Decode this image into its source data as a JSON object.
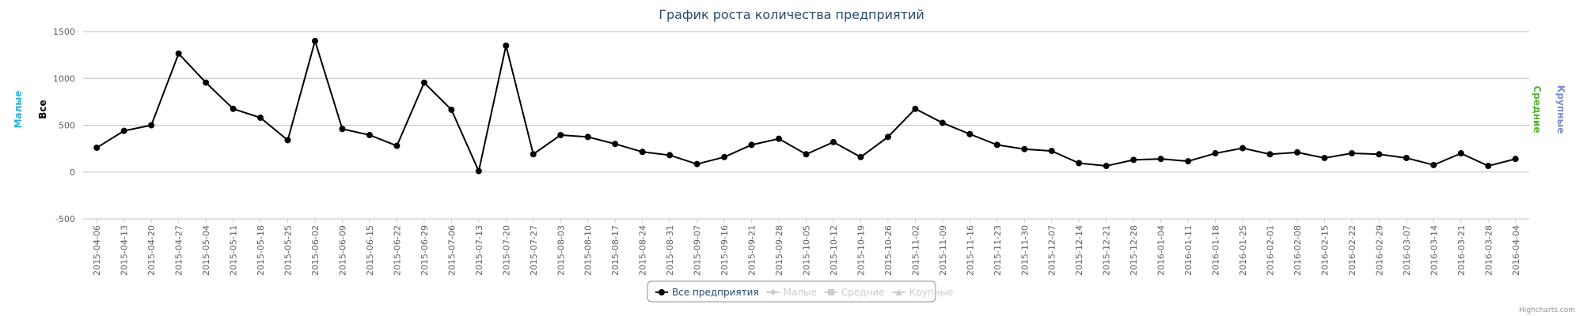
{
  "chart_data": {
    "type": "line",
    "title": "График роста количества предприятий",
    "categories": [
      "2015-04-06",
      "2015-04-13",
      "2015-04-20",
      "2015-04-27",
      "2015-05-04",
      "2015-05-11",
      "2015-05-18",
      "2015-05-25",
      "2015-06-02",
      "2015-06-09",
      "2015-06-15",
      "2015-06-22",
      "2015-06-29",
      "2015-07-06",
      "2015-07-13",
      "2015-07-20",
      "2015-07-27",
      "2015-08-03",
      "2015-08-10",
      "2015-08-17",
      "2015-08-24",
      "2015-08-31",
      "2015-09-07",
      "2015-09-16",
      "2015-09-21",
      "2015-09-28",
      "2015-10-05",
      "2015-10-12",
      "2015-10-19",
      "2015-10-26",
      "2015-11-02",
      "2015-11-09",
      "2015-11-16",
      "2015-11-23",
      "2015-11-30",
      "2015-12-07",
      "2015-12-14",
      "2015-12-21",
      "2015-12-28",
      "2016-01-04",
      "2016-01-11",
      "2016-01-18",
      "2016-01-25",
      "2016-02-01",
      "2016-02-08",
      "2016-02-15",
      "2016-02-22",
      "2016-02-29",
      "2016-03-07",
      "2016-03-14",
      "2016-03-21",
      "2016-03-28",
      "2016-04-04"
    ],
    "series": [
      {
        "name": "Все предприятия",
        "color": "#000000",
        "marker": "circle",
        "visible": true,
        "values": [
          260,
          440,
          500,
          1265,
          955,
          675,
          580,
          340,
          1400,
          460,
          395,
          280,
          955,
          665,
          10,
          1350,
          190,
          395,
          375,
          300,
          215,
          180,
          85,
          160,
          290,
          355,
          190,
          320,
          160,
          375,
          675,
          525,
          405,
          290,
          245,
          225,
          95,
          65,
          130,
          140,
          115,
          200,
          255,
          190,
          210,
          150,
          200,
          190,
          150,
          75,
          200,
          65,
          140
        ]
      },
      {
        "name": "Малые",
        "color": "#2ab0d8",
        "marker": "diamond",
        "visible": false
      },
      {
        "name": "Средние",
        "color": "#50b432",
        "marker": "square",
        "visible": false
      },
      {
        "name": "Крупные",
        "color": "#7a8fcc",
        "marker": "triangle",
        "visible": false
      }
    ],
    "axis_titles": [
      {
        "text": "Малые",
        "color": "#2ab0d8",
        "side": "left"
      },
      {
        "text": "Все",
        "color": "#000000",
        "side": "left"
      },
      {
        "text": "Средние",
        "color": "#50b432",
        "side": "right"
      },
      {
        "text": "Крупные",
        "color": "#7a8fcc",
        "side": "right"
      }
    ],
    "ylim": [
      -500,
      1500
    ],
    "yticks": [
      -500,
      0,
      500,
      1000,
      1500
    ],
    "grid": true,
    "legend": "bottom",
    "credits": "Highcharts.com"
  }
}
